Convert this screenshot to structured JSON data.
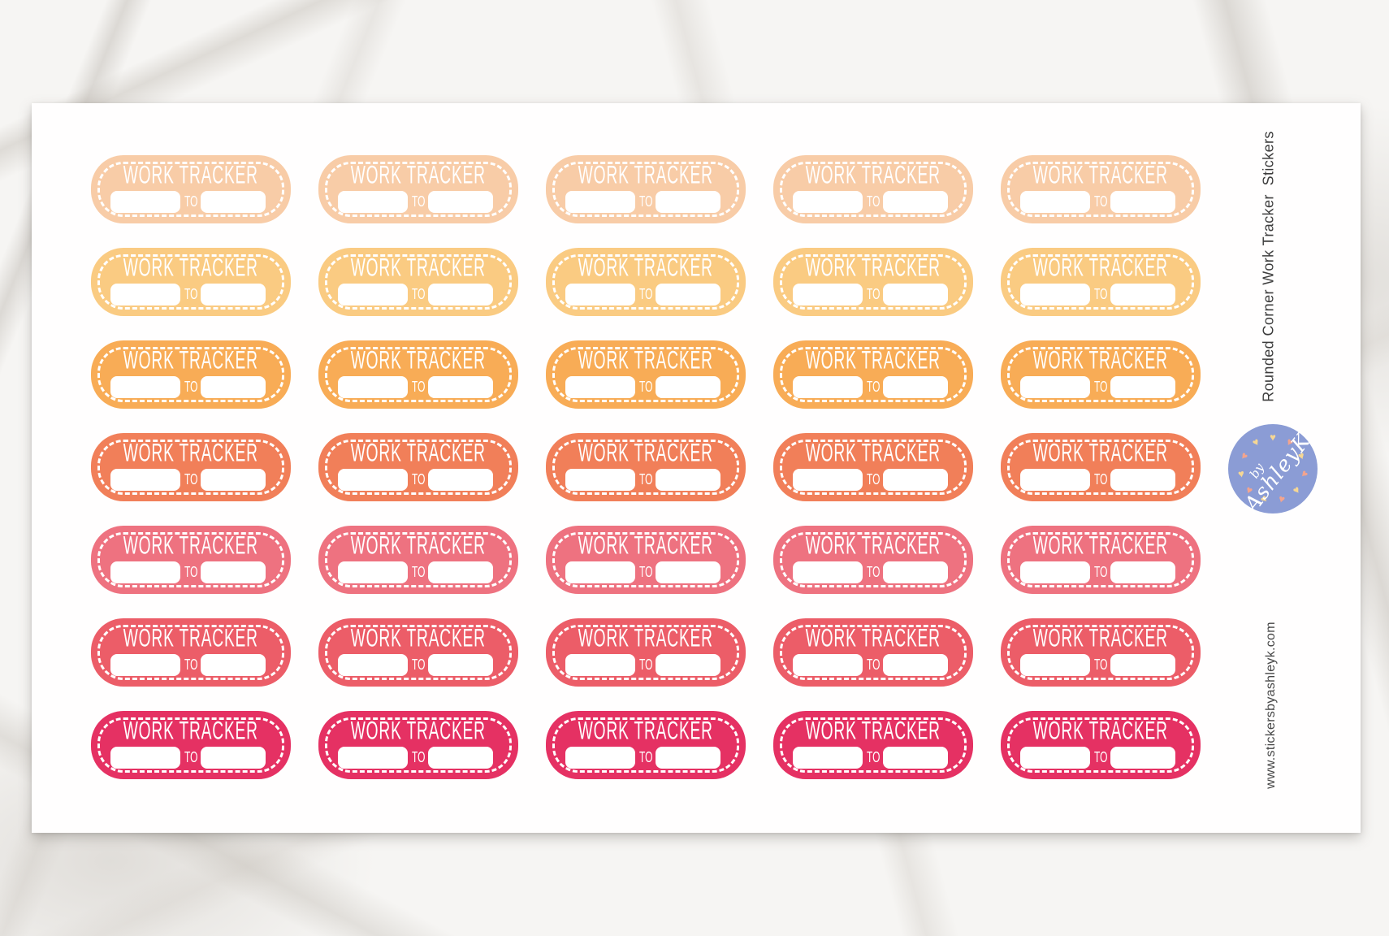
{
  "sticker": {
    "label": "WORK TRACKER",
    "to_label": "TO"
  },
  "grid": {
    "columns": 5,
    "rows": 7,
    "row_colors": [
      "#F8CCA7",
      "#FACB82",
      "#F8AC56",
      "#F17F59",
      "#EE7280",
      "#EC5D68",
      "#E53163"
    ]
  },
  "caption": {
    "text": "Rounded Corner Work Tracker  Stickers"
  },
  "footer_url": {
    "text": "www.stickersbyashleyk.com"
  },
  "logo": {
    "prefix": "by",
    "name": "AshleyK",
    "circle_color": "#8B9CD5",
    "heart_colors": [
      "#F6D794",
      "#F3A48E"
    ]
  }
}
